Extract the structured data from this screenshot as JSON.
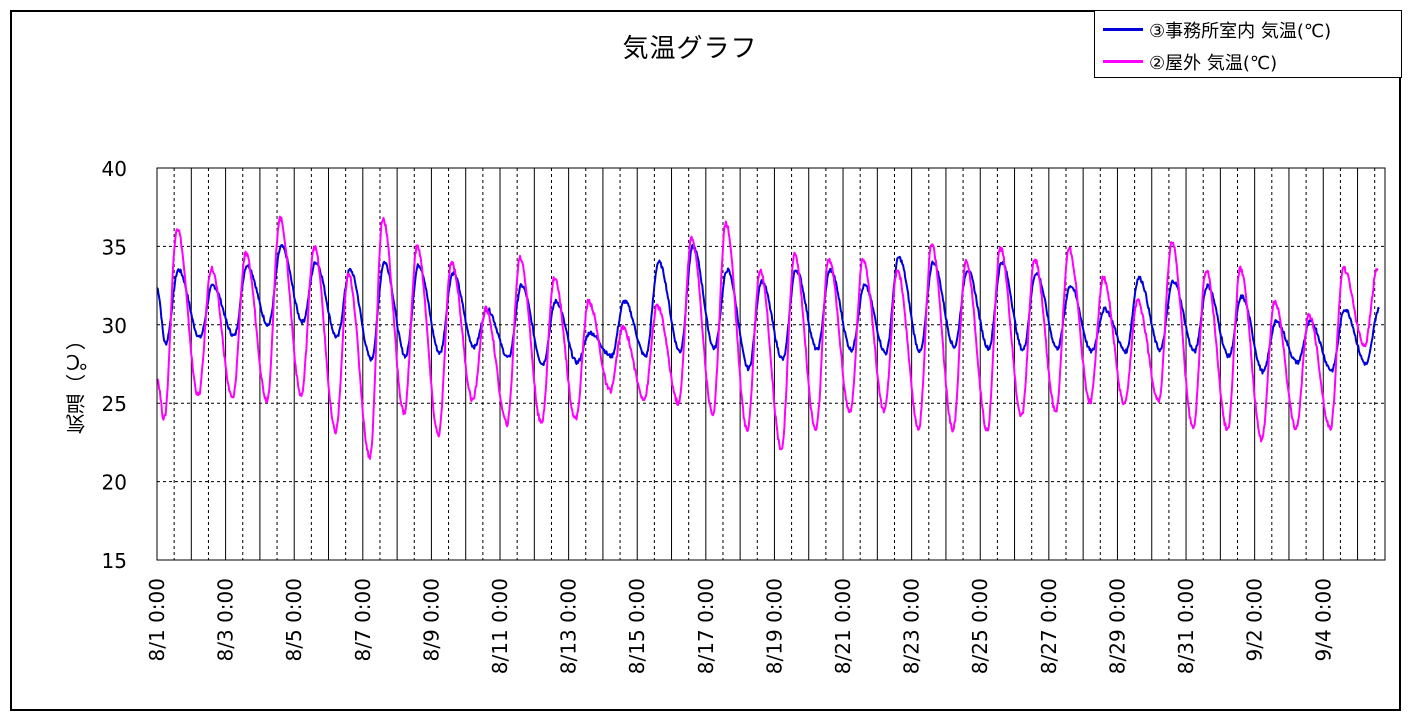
{
  "chart_data": {
    "type": "line",
    "title": "気温グラフ",
    "ylabel": "気温（℃）",
    "xlabel": "",
    "ylim": [
      15,
      40
    ],
    "yticks": [
      15,
      20,
      25,
      30,
      35,
      40
    ],
    "x_range_days": [
      0,
      35.8
    ],
    "xtick_labels": [
      "8/1  0:00",
      "8/3  0:00",
      "8/5  0:00",
      "8/7  0:00",
      "8/9  0:00",
      "8/11  0:00",
      "8/13  0:00",
      "8/15  0:00",
      "8/17  0:00",
      "8/19  0:00",
      "8/21  0:00",
      "8/23  0:00",
      "8/25  0:00",
      "8/27  0:00",
      "8/29  0:00",
      "8/31  0:00",
      "9/2  0:00",
      "9/4  0:00"
    ],
    "grid": "horizontal dashed; vertical solid at day boundaries, dashed at midday",
    "legend_position": "top-right",
    "series": [
      {
        "name": "③事務所室内  気温(℃)",
        "color": "#0000dd",
        "x": [
          0,
          1,
          2,
          3,
          4,
          5,
          6,
          7,
          8,
          9,
          10,
          11,
          12,
          13,
          14,
          15,
          16,
          17,
          18,
          19,
          20,
          21,
          22,
          23,
          24,
          25,
          26,
          27,
          28,
          29,
          30,
          31,
          32,
          33,
          34,
          35
        ],
        "daily_max": [
          33.5,
          32.5,
          33.8,
          35.0,
          34.0,
          33.5,
          34.0,
          33.8,
          33.3,
          31.0,
          32.5,
          31.5,
          29.5,
          31.5,
          34.0,
          35.0,
          33.5,
          32.8,
          33.5,
          33.5,
          32.5,
          34.3,
          34.0,
          33.5,
          34.0,
          33.3,
          32.5,
          31.0,
          33.0,
          32.8,
          32.5,
          31.8,
          30.2,
          30.2,
          31.0,
          31.0
        ],
        "daily_min": [
          28.8,
          29.2,
          29.3,
          30.0,
          30.2,
          29.2,
          27.8,
          28.0,
          28.2,
          28.6,
          27.9,
          27.5,
          27.6,
          28.0,
          28.0,
          28.3,
          28.5,
          27.2,
          27.8,
          28.4,
          28.4,
          28.2,
          28.3,
          28.6,
          28.5,
          28.4,
          28.5,
          28.3,
          28.3,
          28.4,
          28.3,
          28.0,
          27.0,
          27.6,
          27.1,
          27.5
        ]
      },
      {
        "name": "②屋外  気温(℃)",
        "color": "#ff00ff",
        "x": [
          0,
          1,
          2,
          3,
          4,
          5,
          6,
          7,
          8,
          9,
          10,
          11,
          12,
          13,
          14,
          15,
          16,
          17,
          18,
          19,
          20,
          21,
          22,
          23,
          24,
          25,
          26,
          27,
          28,
          29,
          30,
          31,
          32,
          33,
          34,
          35
        ],
        "daily_max": [
          36.2,
          33.6,
          34.5,
          36.8,
          35.0,
          33.2,
          36.8,
          35.0,
          34.0,
          31.0,
          34.3,
          33.0,
          31.5,
          29.8,
          31.2,
          35.5,
          36.5,
          33.5,
          34.5,
          34.2,
          34.2,
          33.5,
          35.1,
          34.0,
          34.9,
          34.2,
          34.9,
          33.0,
          31.5,
          35.3,
          33.5,
          33.6,
          31.5,
          30.6,
          33.6,
          33.6
        ],
        "daily_min": [
          24.0,
          25.5,
          25.3,
          25.2,
          25.5,
          23.2,
          21.6,
          24.4,
          23.0,
          25.2,
          23.7,
          23.7,
          24.0,
          25.8,
          25.3,
          25.0,
          24.3,
          23.3,
          22.1,
          23.3,
          24.4,
          24.5,
          23.4,
          23.3,
          23.3,
          24.2,
          24.5,
          25.1,
          24.9,
          25.2,
          23.4,
          23.3,
          22.7,
          23.4,
          23.4,
          28.7
        ]
      }
    ]
  }
}
